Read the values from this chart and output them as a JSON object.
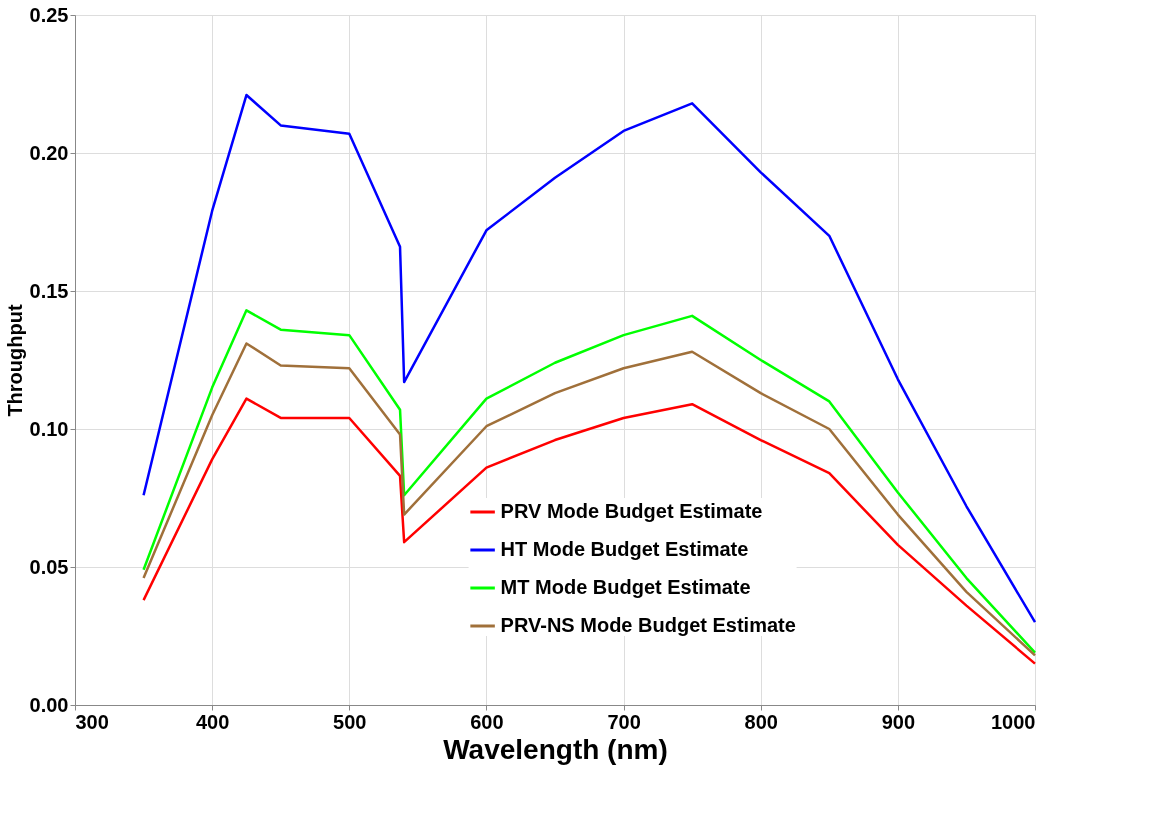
{
  "chart_data": {
    "type": "line",
    "xlabel": "Wavelength (nm)",
    "ylabel": "Throughput",
    "x": [
      350,
      400,
      425,
      450,
      500,
      537,
      540,
      600,
      650,
      700,
      750,
      800,
      850,
      900,
      950,
      1000
    ],
    "series": [
      {
        "name": "PRV Mode Budget Estimate",
        "color": "#ff0000",
        "values": [
          0.038,
          0.089,
          0.111,
          0.104,
          0.104,
          0.083,
          0.059,
          0.086,
          0.096,
          0.104,
          0.109,
          0.096,
          0.084,
          0.058,
          0.036,
          0.015
        ]
      },
      {
        "name": "HT Mode Budget Estimate",
        "color": "#0000ff",
        "values": [
          0.076,
          0.179,
          0.221,
          0.21,
          0.207,
          0.166,
          0.117,
          0.172,
          0.191,
          0.208,
          0.218,
          0.193,
          0.17,
          0.118,
          0.072,
          0.03
        ]
      },
      {
        "name": "MT Mode Budget Estimate",
        "color": "#00ff00",
        "values": [
          0.049,
          0.115,
          0.143,
          0.136,
          0.134,
          0.107,
          0.076,
          0.111,
          0.124,
          0.134,
          0.141,
          0.125,
          0.11,
          0.077,
          0.046,
          0.019
        ]
      },
      {
        "name": "PRV-NS Mode Budget Estimate",
        "color": "#a0703a",
        "values": [
          0.046,
          0.105,
          0.131,
          0.123,
          0.122,
          0.098,
          0.069,
          0.101,
          0.113,
          0.122,
          0.128,
          0.113,
          0.1,
          0.069,
          0.041,
          0.018
        ]
      }
    ],
    "xlim": [
      300,
      1000
    ],
    "xticks": [
      300,
      400,
      500,
      600,
      700,
      800,
      900,
      1000
    ],
    "ylim": [
      0,
      0.25
    ],
    "yticks": [
      {
        "value": 0,
        "label": "0.00"
      },
      {
        "value": 0.05,
        "label": "0.05"
      },
      {
        "value": 0.1,
        "label": "0.10"
      },
      {
        "value": 0.15,
        "label": "0.15"
      },
      {
        "value": 0.2,
        "label": "0.20"
      },
      {
        "value": 0.25,
        "label": "0.25"
      }
    ],
    "grid": true,
    "legend": "bottom",
    "marker": "none",
    "line_style": "solid"
  }
}
